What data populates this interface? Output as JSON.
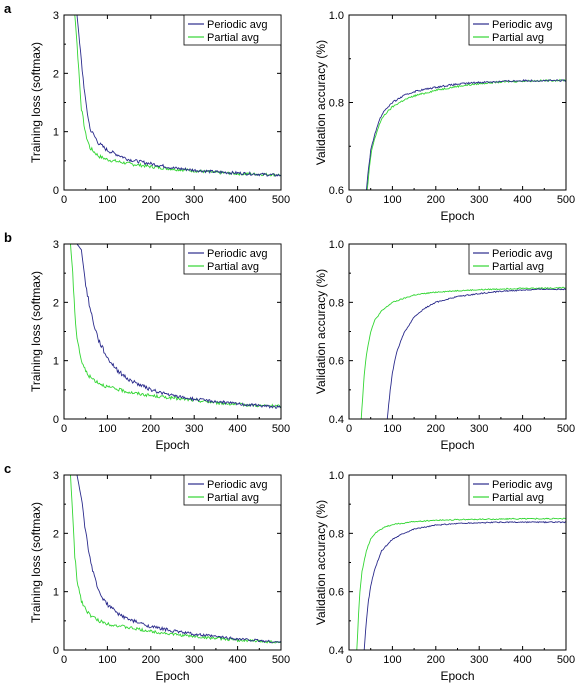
{
  "colors": {
    "periodic": "#2b2b8c",
    "partial": "#33d633",
    "axis": "#000000",
    "background": "#ffffff"
  },
  "chart_data": [
    {
      "panel_label": "a",
      "type": "line",
      "xlabel": "Epoch",
      "ylabel": "Training loss (softmax)",
      "xlim": [
        0,
        500
      ],
      "ylim": [
        0,
        3
      ],
      "xticks": [
        "0",
        "100",
        "200",
        "300",
        "400",
        "500"
      ],
      "yticks": [
        "0",
        "1",
        "2",
        "3"
      ],
      "legend_position": "top-right",
      "series": [
        {
          "name": "Periodic avg",
          "color": "#2b2b8c",
          "x": [
            0,
            20,
            30,
            40,
            50,
            60,
            80,
            100,
            150,
            200,
            250,
            300,
            350,
            400,
            450,
            500
          ],
          "y": [
            3,
            3,
            3,
            2.2,
            1.5,
            1.05,
            0.8,
            0.68,
            0.52,
            0.45,
            0.38,
            0.34,
            0.31,
            0.29,
            0.27,
            0.25
          ]
        },
        {
          "name": "Partial avg",
          "color": "#33d633",
          "x": [
            0,
            20,
            25,
            30,
            40,
            50,
            60,
            80,
            100,
            150,
            200,
            250,
            300,
            350,
            400,
            450,
            500
          ],
          "y": [
            3,
            3,
            3,
            2.5,
            1.4,
            0.95,
            0.72,
            0.58,
            0.52,
            0.45,
            0.4,
            0.36,
            0.33,
            0.3,
            0.28,
            0.27,
            0.26
          ]
        }
      ]
    },
    {
      "panel_label": "",
      "type": "line",
      "xlabel": "Epoch",
      "ylabel": "Validation accuracy (%)",
      "xlim": [
        0,
        500
      ],
      "ylim": [
        0.6,
        1.0
      ],
      "xticks": [
        "0",
        "100",
        "200",
        "300",
        "400",
        "500"
      ],
      "yticks": [
        "0.6",
        "0.8",
        "1.0"
      ],
      "legend_position": "top-right",
      "series": [
        {
          "name": "Periodic avg",
          "color": "#2b2b8c",
          "x": [
            40,
            45,
            50,
            60,
            70,
            80,
            100,
            125,
            150,
            200,
            250,
            300,
            350,
            400,
            450,
            500
          ],
          "y": [
            0.6,
            0.65,
            0.69,
            0.73,
            0.76,
            0.78,
            0.8,
            0.815,
            0.825,
            0.835,
            0.842,
            0.846,
            0.848,
            0.85,
            0.85,
            0.85
          ]
        },
        {
          "name": "Partial avg",
          "color": "#33d633",
          "x": [
            42,
            47,
            52,
            60,
            70,
            80,
            100,
            125,
            150,
            200,
            250,
            300,
            350,
            400,
            450,
            500
          ],
          "y": [
            0.6,
            0.65,
            0.69,
            0.72,
            0.75,
            0.77,
            0.79,
            0.805,
            0.815,
            0.828,
            0.837,
            0.843,
            0.847,
            0.849,
            0.85,
            0.851
          ]
        }
      ]
    },
    {
      "panel_label": "b",
      "type": "line",
      "xlabel": "Epoch",
      "ylabel": "Training loss (softmax)",
      "xlim": [
        0,
        500
      ],
      "ylim": [
        0,
        3
      ],
      "xticks": [
        "0",
        "100",
        "200",
        "300",
        "400",
        "500"
      ],
      "yticks": [
        "0",
        "1",
        "2",
        "3"
      ],
      "legend_position": "top-right",
      "series": [
        {
          "name": "Periodic avg",
          "color": "#2b2b8c",
          "x": [
            0,
            30,
            40,
            50,
            60,
            70,
            80,
            100,
            125,
            150,
            200,
            250,
            300,
            350,
            400,
            450,
            500
          ],
          "y": [
            3,
            3,
            2.9,
            2.3,
            1.9,
            1.6,
            1.35,
            1.05,
            0.82,
            0.67,
            0.5,
            0.4,
            0.34,
            0.3,
            0.26,
            0.23,
            0.2
          ]
        },
        {
          "name": "Partial avg",
          "color": "#33d633",
          "x": [
            0,
            15,
            20,
            25,
            30,
            40,
            50,
            60,
            80,
            100,
            150,
            200,
            250,
            300,
            350,
            400,
            450,
            500
          ],
          "y": [
            3,
            3,
            2.5,
            1.8,
            1.4,
            1.0,
            0.82,
            0.72,
            0.62,
            0.55,
            0.46,
            0.4,
            0.36,
            0.32,
            0.28,
            0.25,
            0.23,
            0.22
          ]
        }
      ]
    },
    {
      "panel_label": "",
      "type": "line",
      "xlabel": "Epoch",
      "ylabel": "Validation accuracy (%)",
      "xlim": [
        0,
        500
      ],
      "ylim": [
        0.4,
        1.0
      ],
      "xticks": [
        "0",
        "100",
        "200",
        "300",
        "400",
        "500"
      ],
      "yticks": [
        "0.4",
        "0.6",
        "0.8",
        "1.0"
      ],
      "legend_position": "top-right",
      "series": [
        {
          "name": "Periodic avg",
          "color": "#2b2b8c",
          "x": [
            88,
            95,
            100,
            110,
            125,
            150,
            175,
            200,
            250,
            300,
            350,
            400,
            450,
            500
          ],
          "y": [
            0.4,
            0.5,
            0.56,
            0.63,
            0.69,
            0.75,
            0.78,
            0.8,
            0.82,
            0.83,
            0.838,
            0.842,
            0.845,
            0.845
          ]
        },
        {
          "name": "Partial avg",
          "color": "#33d633",
          "x": [
            28,
            35,
            40,
            50,
            60,
            75,
            100,
            150,
            200,
            250,
            300,
            350,
            400,
            450,
            500
          ],
          "y": [
            0.4,
            0.55,
            0.62,
            0.7,
            0.74,
            0.77,
            0.8,
            0.825,
            0.835,
            0.84,
            0.843,
            0.846,
            0.848,
            0.849,
            0.85
          ]
        }
      ]
    },
    {
      "panel_label": "c",
      "type": "line",
      "xlabel": "Epoch",
      "ylabel": "Training loss (softmax)",
      "xlim": [
        0,
        500
      ],
      "ylim": [
        0,
        3
      ],
      "xticks": [
        "0",
        "100",
        "200",
        "300",
        "400",
        "500"
      ],
      "yticks": [
        "0",
        "1",
        "2",
        "3"
      ],
      "legend_position": "top-right",
      "series": [
        {
          "name": "Periodic avg",
          "color": "#2b2b8c",
          "x": [
            0,
            30,
            40,
            50,
            60,
            70,
            80,
            100,
            125,
            150,
            200,
            250,
            300,
            350,
            400,
            450,
            500
          ],
          "y": [
            3,
            3,
            2.6,
            2.0,
            1.55,
            1.25,
            1.0,
            0.78,
            0.62,
            0.52,
            0.4,
            0.33,
            0.27,
            0.23,
            0.19,
            0.16,
            0.13
          ]
        },
        {
          "name": "Partial avg",
          "color": "#33d633",
          "x": [
            0,
            15,
            20,
            25,
            30,
            40,
            50,
            60,
            80,
            100,
            150,
            200,
            250,
            300,
            350,
            400,
            450,
            500
          ],
          "y": [
            3,
            3,
            2.3,
            1.6,
            1.2,
            0.85,
            0.7,
            0.6,
            0.5,
            0.45,
            0.38,
            0.32,
            0.27,
            0.23,
            0.2,
            0.17,
            0.15,
            0.13
          ]
        }
      ]
    },
    {
      "panel_label": "",
      "type": "line",
      "xlabel": "Epoch",
      "ylabel": "Validation accuracy (%)",
      "xlim": [
        0,
        500
      ],
      "ylim": [
        0.4,
        1.0
      ],
      "xticks": [
        "0",
        "100",
        "200",
        "300",
        "400",
        "500"
      ],
      "yticks": [
        "0.4",
        "0.6",
        "0.8",
        "1.0"
      ],
      "legend_position": "top-right",
      "series": [
        {
          "name": "Periodic avg",
          "color": "#2b2b8c",
          "x": [
            35,
            40,
            45,
            50,
            60,
            75,
            100,
            125,
            150,
            200,
            250,
            300,
            350,
            400,
            450,
            500
          ],
          "y": [
            0.4,
            0.5,
            0.57,
            0.62,
            0.68,
            0.74,
            0.78,
            0.8,
            0.815,
            0.828,
            0.834,
            0.836,
            0.838,
            0.838,
            0.838,
            0.838
          ]
        },
        {
          "name": "Partial avg",
          "color": "#33d633",
          "x": [
            18,
            22,
            25,
            30,
            40,
            50,
            60,
            80,
            100,
            150,
            200,
            250,
            300,
            350,
            400,
            450,
            500
          ],
          "y": [
            0.4,
            0.52,
            0.6,
            0.67,
            0.74,
            0.78,
            0.8,
            0.82,
            0.83,
            0.84,
            0.845,
            0.847,
            0.848,
            0.849,
            0.85,
            0.85,
            0.85
          ]
        }
      ]
    }
  ]
}
